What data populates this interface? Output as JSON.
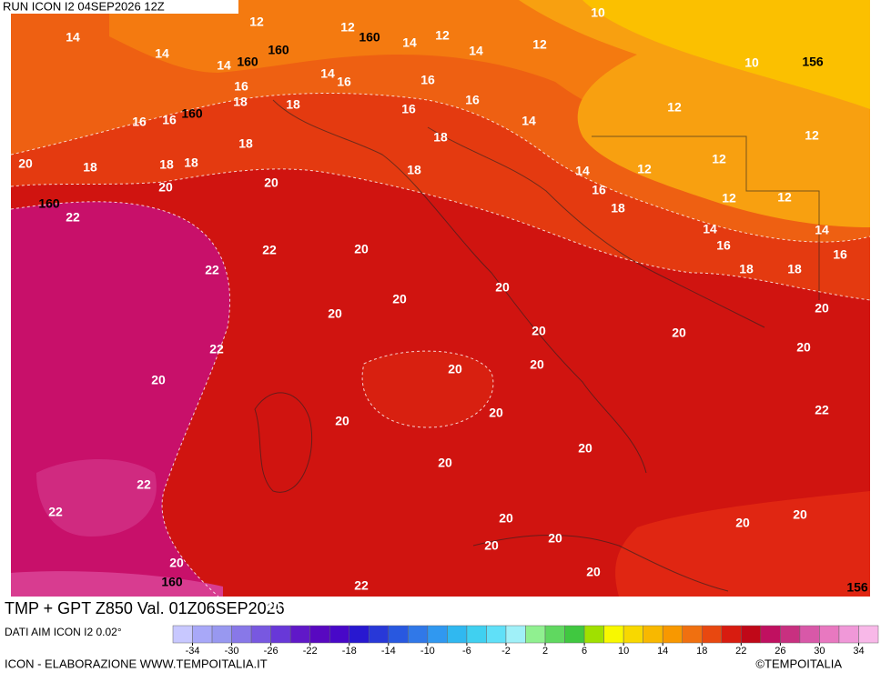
{
  "header": {
    "run": "RUN ICON I2 04SEP2026 12Z"
  },
  "map": {
    "temperature_labels": [
      "12",
      "12",
      "14",
      "12",
      "14",
      "12",
      "10",
      "10",
      "14",
      "14",
      "14",
      "14",
      "16",
      "16",
      "18",
      "18",
      "16",
      "16",
      "16",
      "16",
      "16",
      "14",
      "12",
      "12",
      "18",
      "18",
      "20",
      "18",
      "18",
      "18",
      "18",
      "14",
      "12",
      "12",
      "16",
      "20",
      "20",
      "22",
      "18",
      "12",
      "12",
      "14",
      "14",
      "16",
      "16",
      "22",
      "20",
      "22",
      "18",
      "18",
      "20",
      "20",
      "20",
      "20",
      "20",
      "20",
      "20",
      "22",
      "20",
      "20",
      "20",
      "22",
      "20",
      "20",
      "20",
      "20",
      "20",
      "22",
      "22",
      "20",
      "20",
      "20",
      "20",
      "20",
      "20",
      "22",
      "20",
      "20",
      "20"
    ],
    "geopotential_labels": [
      "160",
      "156",
      "160",
      "160",
      "160",
      "160",
      "160",
      "156"
    ]
  },
  "footer": {
    "title": "TMP + GPT Z850 Val. 01Z06SEP2026",
    "source": "DATI AIM ICON I2 0.02°",
    "credit": "ICON - ELABORAZIONE WWW.TEMPOITALIA.IT",
    "brand": "©TEMPOITALIA"
  },
  "colorbar": {
    "range": [
      -36,
      36
    ],
    "ticks": [
      -34,
      -30,
      -26,
      -22,
      -18,
      -14,
      -10,
      -6,
      -2,
      2,
      6,
      10,
      14,
      18,
      22,
      26,
      30,
      34
    ],
    "colors": [
      "#c8c8ff",
      "#a8a8f8",
      "#9898f0",
      "#8878e8",
      "#7858e0",
      "#6838d8",
      "#6018c8",
      "#5808c0",
      "#4808c8",
      "#2818d0",
      "#2838d8",
      "#2858e0",
      "#3078e8",
      "#3098f0",
      "#30b8f0",
      "#40d0f0",
      "#60e0f8",
      "#a0f0f8",
      "#90f090",
      "#60d860",
      "#40c840",
      "#a0e000",
      "#f8f800",
      "#f8d800",
      "#f8b800",
      "#f89800",
      "#f07010",
      "#e84810",
      "#d81c10",
      "#c00818",
      "#c01060",
      "#c83080",
      "#d858a8",
      "#e878c0",
      "#f098d8",
      "#f8b8e8"
    ]
  }
}
